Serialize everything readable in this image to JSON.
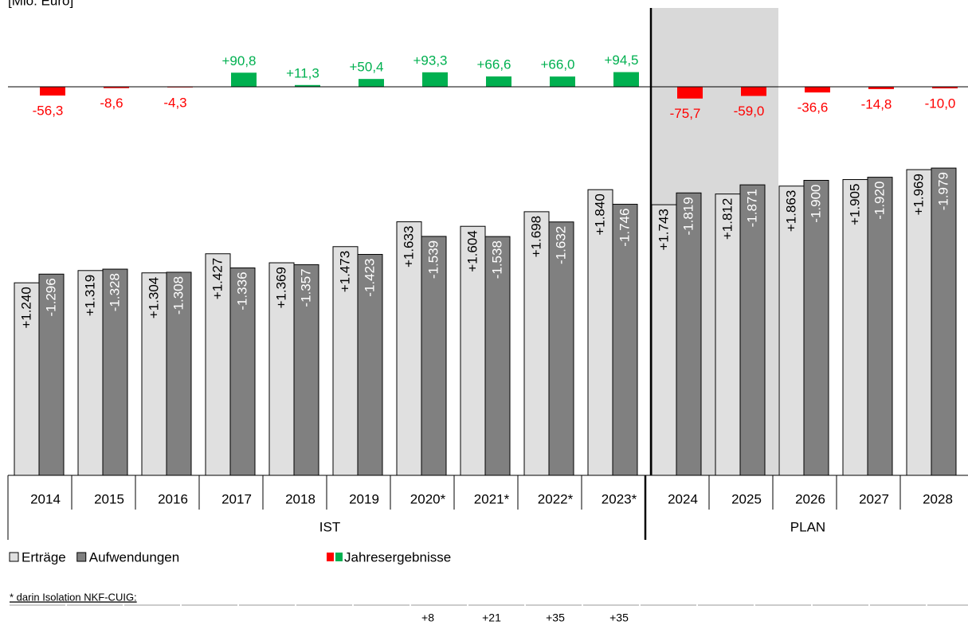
{
  "chart_data": [
    {
      "type": "bar",
      "name": "Jahresergebnisse",
      "categories": [
        "2014",
        "2015",
        "2016",
        "2017",
        "2018",
        "2019",
        "2020*",
        "2021*",
        "2022*",
        "2023*",
        "2024",
        "2025",
        "2026",
        "2027",
        "2028"
      ],
      "values": [
        -56.3,
        -8.6,
        -4.3,
        90.8,
        11.3,
        50.4,
        93.3,
        66.6,
        66.0,
        94.5,
        -75.7,
        -59.0,
        -36.6,
        -14.8,
        -10.0
      ],
      "value_labels": [
        "-56,3",
        "-8,6",
        "-4,3",
        "+90,8",
        "+11,3",
        "+50,4",
        "+93,3",
        "+66,6",
        "+66,0",
        "+94,5",
        "-75,7",
        "-59,0",
        "-36,6",
        "-14,8",
        "-10,0"
      ],
      "colors": {
        "positive": "#00b050",
        "negative": "#ff0000"
      }
    },
    {
      "type": "grouped_bar",
      "unit_label": "[Mio. Euro]",
      "categories": [
        "2014",
        "2015",
        "2016",
        "2017",
        "2018",
        "2019",
        "2020*",
        "2021*",
        "2022*",
        "2023*",
        "2024",
        "2025",
        "2026",
        "2027",
        "2028"
      ],
      "groups": [
        {
          "label": "IST",
          "count": 10
        },
        {
          "label": "PLAN",
          "count": 5
        }
      ],
      "series": [
        {
          "name": "Erträge",
          "color": "#e0e0e0",
          "values": [
            1240,
            1319,
            1304,
            1427,
            1369,
            1473,
            1633,
            1604,
            1698,
            1840,
            1743,
            1812,
            1863,
            1905,
            1969
          ],
          "value_labels": [
            "+1.240",
            "+1.319",
            "+1.304",
            "+1.427",
            "+1.369",
            "+1.473",
            "+1.633",
            "+1.604",
            "+1.698",
            "+1.840",
            "+1.743",
            "+1.812",
            "+1.863",
            "+1.905",
            "+1.969"
          ]
        },
        {
          "name": "Aufwendungen",
          "color": "#808080",
          "values": [
            -1296,
            -1328,
            -1308,
            -1336,
            -1357,
            -1423,
            -1539,
            -1538,
            -1632,
            -1746,
            -1819,
            -1871,
            -1900,
            -1920,
            -1979
          ],
          "value_labels": [
            "-1.296",
            "-1.328",
            "-1.308",
            "-1.336",
            "-1.357",
            "-1.423",
            "-1.539",
            "-1.538",
            "-1.632",
            "-1.746",
            "-1.819",
            "-1.871",
            "-1.900",
            "-1.920",
            "-1.979"
          ]
        }
      ],
      "legend_result": "Jahresergebnisse",
      "footnote": {
        "text": "* darin Isolation NKF-CUIG:",
        "start_index": 6,
        "values": [
          "+8",
          "+21",
          "+35",
          "+35"
        ]
      }
    }
  ]
}
